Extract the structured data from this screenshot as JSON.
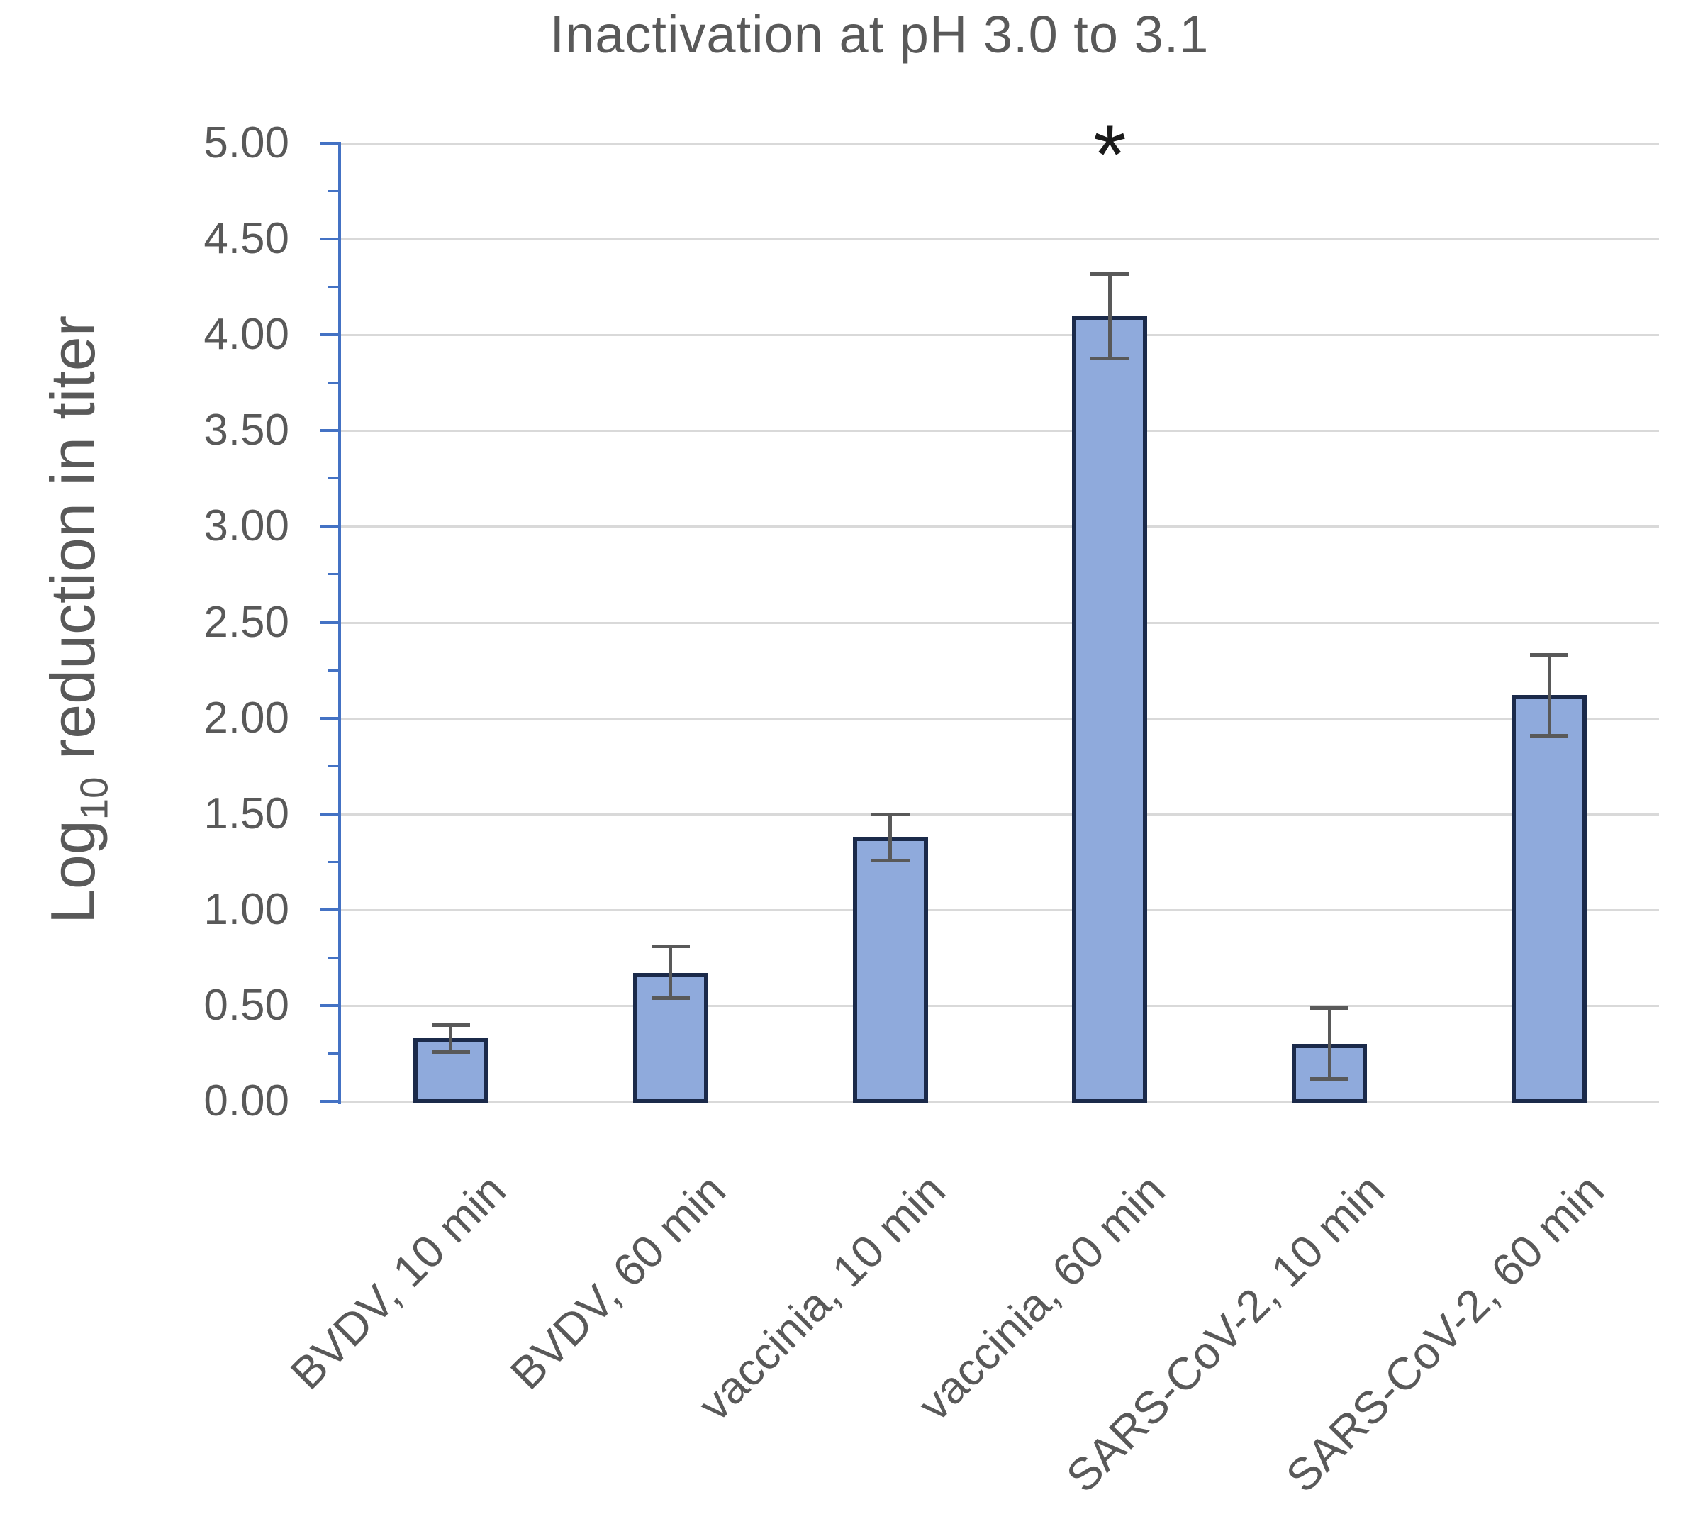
{
  "chart_data": {
    "type": "bar",
    "title": "Inactivation at pH 3.0 to 3.1",
    "ylabel_parts": {
      "prefix": "Log",
      "sub": "10",
      "suffix": " reduction in titer"
    },
    "categories": [
      "BVDV, 10 min",
      "BVDV, 60 min",
      "vaccinia, 10 min",
      "vaccinia, 60 min",
      "SARS-CoV-2, 10 min",
      "SARS-CoV-2, 60 min"
    ],
    "values": [
      0.33,
      0.67,
      1.38,
      4.1,
      0.3,
      2.12
    ],
    "error_plus": [
      0.07,
      0.14,
      0.12,
      0.22,
      0.19,
      0.21
    ],
    "error_minus": [
      0.07,
      0.13,
      0.12,
      0.22,
      0.18,
      0.21
    ],
    "annotations": [
      {
        "category_index": 3,
        "symbol": "*"
      }
    ],
    "xlabel": "",
    "ylim": [
      0.0,
      5.0
    ],
    "ytick_labels": [
      "0.00",
      "0.50",
      "1.00",
      "1.50",
      "2.00",
      "2.50",
      "3.00",
      "3.50",
      "4.00",
      "4.50",
      "5.00"
    ],
    "ytick_step": 0.5,
    "minor_tick_step": 0.25,
    "grid": "on",
    "legend": "none",
    "colors": {
      "bar_fill": "#8faadc",
      "bar_border": "#1b2a4a",
      "axis": "#4472c4",
      "gridline": "#d9d9d9",
      "text": "#595959",
      "error_bar": "#595959",
      "annotation": "#1a1a1a"
    }
  }
}
